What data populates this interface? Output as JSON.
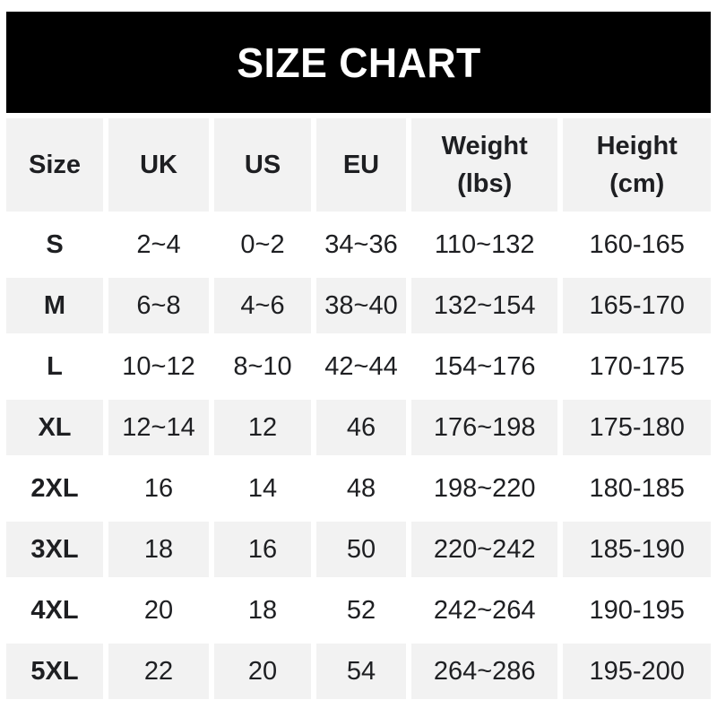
{
  "title": "SIZE CHART",
  "colors": {
    "banner_bg": "#000000",
    "banner_text": "#ffffff",
    "row_alt_bg": "#f2f2f2",
    "row_bg": "#ffffff",
    "text": "#1e1f22"
  },
  "chart_data": {
    "type": "table",
    "title": "SIZE CHART",
    "columns": [
      "Size",
      "UK",
      "US",
      "EU",
      "Weight\n(lbs)",
      "Height\n(cm)"
    ],
    "rows": [
      {
        "size": "S",
        "uk": "2~4",
        "us": "0~2",
        "eu": "34~36",
        "weight": "110~132",
        "height": "160-165"
      },
      {
        "size": "M",
        "uk": "6~8",
        "us": "4~6",
        "eu": "38~40",
        "weight": "132~154",
        "height": "165-170"
      },
      {
        "size": "L",
        "uk": "10~12",
        "us": "8~10",
        "eu": "42~44",
        "weight": "154~176",
        "height": "170-175"
      },
      {
        "size": "XL",
        "uk": "12~14",
        "us": "12",
        "eu": "46",
        "weight": "176~198",
        "height": "175-180"
      },
      {
        "size": "2XL",
        "uk": "16",
        "us": "14",
        "eu": "48",
        "weight": "198~220",
        "height": "180-185"
      },
      {
        "size": "3XL",
        "uk": "18",
        "us": "16",
        "eu": "50",
        "weight": "220~242",
        "height": "185-190"
      },
      {
        "size": "4XL",
        "uk": "20",
        "us": "18",
        "eu": "52",
        "weight": "242~264",
        "height": "190-195"
      },
      {
        "size": "5XL",
        "uk": "22",
        "us": "20",
        "eu": "54",
        "weight": "264~286",
        "height": "195-200"
      }
    ]
  }
}
